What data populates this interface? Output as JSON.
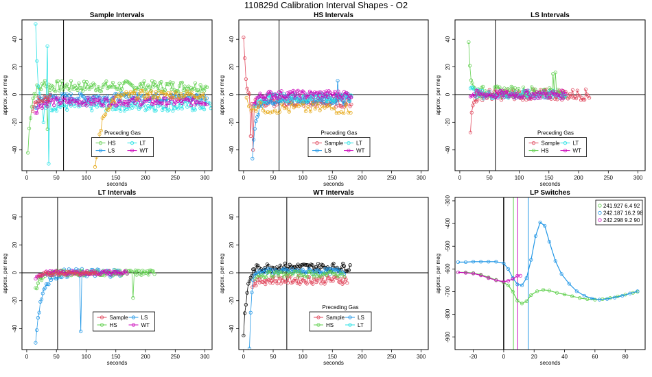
{
  "figure_title": "110829d   Calibration Interval Shapes - O2",
  "colors": {
    "Sample": "#E0475C",
    "HS": "#61D04F",
    "LS": "#2297E6",
    "LT": "#28E2E5",
    "WT": "#CD0BBC",
    "Other": "#000000"
  },
  "chart_data": [
    {
      "type": "scatter",
      "id": "p1",
      "title": "Sample Intervals",
      "xlabel": "seconds",
      "ylabel": "approx. per meg",
      "xlim": [
        -8,
        312
      ],
      "ylim": [
        -55,
        54
      ],
      "xticks": [
        0,
        50,
        100,
        150,
        200,
        250,
        300
      ],
      "yticks": [
        -40,
        -20,
        0,
        20,
        40
      ],
      "hline": 0,
      "vline": 62,
      "legend": {
        "title": "Preceding Gas",
        "position": "center",
        "entries": [
          "HS",
          "LT",
          "LS",
          "WT"
        ],
        "keys": [
          "HS",
          "LT",
          "LS",
          "WT"
        ],
        "columns": 2
      },
      "series": [
        {
          "name": "HS",
          "key": "HS",
          "x0": 2,
          "x1": 305,
          "step": 2.2,
          "start": -42,
          "tau": 5,
          "level": 6,
          "noise": 4,
          "spike_x": [
            30,
            36
          ],
          "spike_y": [
            10,
            -25
          ]
        },
        {
          "name": "LT",
          "key": "LT",
          "x0": 15,
          "x1": 310,
          "step": 2.2,
          "start": 55,
          "tau": 3,
          "level": -8,
          "noise": 4,
          "spike_x": [
            28,
            35,
            38
          ],
          "spike_y": [
            -20,
            35,
            -50
          ]
        },
        {
          "name": "LS",
          "key": "LS",
          "x0": 15,
          "x1": 305,
          "step": 2.2,
          "start": -10,
          "tau": 6,
          "level": -2,
          "noise": 3,
          "spike_x": [],
          "spike_y": []
        },
        {
          "name": "WT",
          "key": "WT",
          "x0": 15,
          "x1": 305,
          "step": 2.2,
          "start": -12,
          "tau": 8,
          "level": -5,
          "noise": 3,
          "spike_x": [],
          "spike_y": []
        },
        {
          "name": "Sample",
          "key": "Sample",
          "x0": 10,
          "x1": 40,
          "step": 2,
          "start": -10,
          "tau": 5,
          "level": -2,
          "noise": 3,
          "spike_x": [],
          "spike_y": []
        },
        {
          "name": "Other",
          "key": "Other",
          "x0": 115,
          "x1": 300,
          "step": 2.5,
          "start": -55,
          "tau": 12,
          "level": 0,
          "noise": 3,
          "color": "#E6A817",
          "spike_x": [],
          "spike_y": []
        }
      ]
    },
    {
      "type": "scatter",
      "id": "p2",
      "title": "HS Intervals",
      "xlabel": "seconds",
      "ylabel": "approx. per meg",
      "xlim": [
        -8,
        312
      ],
      "ylim": [
        -55,
        54
      ],
      "xticks": [
        0,
        50,
        100,
        150,
        200,
        250,
        300
      ],
      "yticks": [
        -40,
        -20,
        0,
        20,
        40
      ],
      "hline": 0,
      "vline": 60,
      "legend": {
        "title": "Preceding Gas",
        "position": "center",
        "entries": [
          "Sample",
          "LT",
          "LS",
          "WT"
        ],
        "keys": [
          "Sample",
          "LT",
          "LS",
          "WT"
        ],
        "columns": 2
      },
      "series": [
        {
          "name": "Sample",
          "key": "Sample",
          "x0": 0,
          "x1": 182,
          "step": 2,
          "start": 43,
          "tau": 4,
          "level": -6,
          "noise": 3,
          "spike_x": [
            12,
            16
          ],
          "spike_y": [
            -30,
            -40
          ]
        },
        {
          "name": "LS",
          "key": "LS",
          "x0": 15,
          "x1": 182,
          "step": 2,
          "start": -45,
          "tau": 6,
          "level": -4,
          "noise": 3,
          "spike_x": [
            160
          ],
          "spike_y": [
            10
          ]
        },
        {
          "name": "LT",
          "key": "LT",
          "x0": 18,
          "x1": 182,
          "step": 2,
          "start": -8,
          "tau": 8,
          "level": -2,
          "noise": 3,
          "spike_x": [],
          "spike_y": []
        },
        {
          "name": "WT",
          "key": "WT",
          "x0": 18,
          "x1": 182,
          "step": 2,
          "start": -5,
          "tau": 8,
          "level": 0,
          "noise": 3,
          "spike_x": [],
          "spike_y": []
        },
        {
          "name": "Other",
          "key": "Other",
          "x0": 5,
          "x1": 182,
          "step": 4,
          "start": -5,
          "tau": 10,
          "level": -10,
          "noise": 4,
          "color": "#E6A817",
          "spike_x": [],
          "spike_y": []
        }
      ]
    },
    {
      "type": "scatter",
      "id": "p3",
      "title": "LS Intervals",
      "xlabel": "seconds",
      "ylabel": "approx. per meg",
      "xlim": [
        -8,
        312
      ],
      "ylim": [
        -55,
        54
      ],
      "xticks": [
        0,
        50,
        100,
        150,
        200,
        250,
        300
      ],
      "yticks": [
        -40,
        -20,
        0,
        20,
        40
      ],
      "hline": 0,
      "vline": 60,
      "legend": {
        "title": "Preceding Gas",
        "position": "center",
        "entries": [
          "Sample",
          "LT",
          "HS",
          "WT"
        ],
        "keys": [
          "Sample",
          "LT",
          "HS",
          "WT"
        ],
        "columns": 2
      },
      "series": [
        {
          "name": "Sample",
          "key": "Sample",
          "x0": 18,
          "x1": 218,
          "step": 2,
          "start": -25,
          "tau": 4,
          "level": 0,
          "noise": 4,
          "spike_x": [],
          "spike_y": []
        },
        {
          "name": "HS",
          "key": "HS",
          "x0": 15,
          "x1": 178,
          "step": 2,
          "start": 40,
          "tau": 3,
          "level": 2,
          "noise": 4,
          "spike_x": [
            158,
            162
          ],
          "spike_y": [
            15,
            16
          ]
        },
        {
          "name": "LT",
          "key": "LT",
          "x0": 18,
          "x1": 178,
          "step": 2,
          "start": 5,
          "tau": 6,
          "level": 0,
          "noise": 3,
          "spike_x": [],
          "spike_y": []
        },
        {
          "name": "WT",
          "key": "WT",
          "x0": 18,
          "x1": 178,
          "step": 2,
          "start": 0,
          "tau": 6,
          "level": 0,
          "noise": 3,
          "spike_x": [],
          "spike_y": []
        }
      ]
    },
    {
      "type": "scatter",
      "id": "p4",
      "title": "LT Intervals",
      "xlabel": "seconds",
      "ylabel": "approx. per meg",
      "xlim": [
        -8,
        312
      ],
      "ylim": [
        -55,
        54
      ],
      "xticks": [
        0,
        50,
        100,
        150,
        200,
        250,
        300
      ],
      "yticks": [
        -40,
        -20,
        0,
        20,
        40
      ],
      "hline": 0,
      "vline": 52,
      "legend": {
        "title": "",
        "position": "bottom-center",
        "entries": [
          "Sample",
          "LS",
          "HS",
          "WT"
        ],
        "keys": [
          "Sample",
          "LS",
          "HS",
          "WT"
        ],
        "columns": 2
      },
      "series": [
        {
          "name": "LS",
          "key": "LS",
          "x0": 15,
          "x1": 160,
          "step": 2,
          "start": -48,
          "tau": 10,
          "level": 0,
          "noise": 3,
          "spike_x": [
            92
          ],
          "spike_y": [
            -42
          ]
        },
        {
          "name": "HS",
          "key": "HS",
          "x0": 15,
          "x1": 215,
          "step": 2,
          "start": -12,
          "tau": 8,
          "level": 0,
          "noise": 2,
          "spike_x": [
            180
          ],
          "spike_y": [
            -18
          ]
        },
        {
          "name": "WT",
          "key": "WT",
          "x0": 15,
          "x1": 170,
          "step": 2,
          "start": -3,
          "tau": 8,
          "level": 0,
          "noise": 1.5,
          "spike_x": [],
          "spike_y": []
        },
        {
          "name": "Sample",
          "key": "Sample",
          "x0": 20,
          "x1": 120,
          "step": 3,
          "start": -4,
          "tau": 8,
          "level": 0,
          "noise": 1.5,
          "spike_x": [],
          "spike_y": []
        }
      ]
    },
    {
      "type": "scatter",
      "id": "p5",
      "title": "WT Intervals",
      "xlabel": "seconds",
      "ylabel": "approx. per meg",
      "xlim": [
        -8,
        312
      ],
      "ylim": [
        -55,
        54
      ],
      "xticks": [
        0,
        50,
        100,
        150,
        200,
        250,
        300
      ],
      "yticks": [
        -40,
        -20,
        0,
        20,
        40
      ],
      "hline": 0,
      "vline": 73,
      "legend": {
        "title": "Preceding Gas",
        "position": "bottom-center",
        "entries": [
          "Sample",
          "LS",
          "HS",
          "LT"
        ],
        "keys": [
          "Sample",
          "LS",
          "HS",
          "LT"
        ],
        "columns": 2
      },
      "series": [
        {
          "name": "Other",
          "key": "Other",
          "x0": 0,
          "x1": 180,
          "step": 2,
          "start": -46,
          "tau": 6,
          "level": 4,
          "noise": 3,
          "spike_x": [],
          "spike_y": []
        },
        {
          "name": "Sample",
          "key": "Sample",
          "x0": 15,
          "x1": 175,
          "step": 2,
          "start": -8,
          "tau": 8,
          "level": -5,
          "noise": 3,
          "spike_x": [],
          "spike_y": []
        },
        {
          "name": "LS",
          "key": "LS",
          "x0": 10,
          "x1": 170,
          "step": 2,
          "start": -55,
          "tau": 3,
          "level": 1,
          "noise": 2,
          "spike_x": [],
          "spike_y": []
        },
        {
          "name": "HS",
          "key": "HS",
          "x0": 20,
          "x1": 170,
          "step": 3,
          "start": -3,
          "tau": 8,
          "level": -1,
          "noise": 2,
          "spike_x": [],
          "spike_y": []
        }
      ]
    },
    {
      "type": "line",
      "id": "p6",
      "title": "LP Switches",
      "xlabel": "seconds",
      "ylabel": "approx. per meg",
      "xlim": [
        -32,
        93
      ],
      "ylim": [
        -955,
        -285
      ],
      "xticks": [
        -20,
        0,
        20,
        40,
        60,
        80
      ],
      "yticks": [
        -300,
        -400,
        -500,
        -600,
        -700,
        -800,
        -900
      ],
      "vlines": [
        {
          "x": 0,
          "color": "#000000",
          "width": 1.5
        },
        {
          "x": 6.4,
          "color": "#61D04F",
          "width": 1
        },
        {
          "x": 9.2,
          "color": "#CD0BBC",
          "width": 1
        },
        {
          "x": 16.2,
          "color": "#2297E6",
          "width": 1
        }
      ],
      "legend": {
        "title": "",
        "position": "top-right",
        "entries": [
          "241.927 6.4 92",
          "242.187 16.2 98",
          "242.298 9.2 90"
        ],
        "keys": [
          "HS",
          "LS",
          "WT"
        ],
        "columns": 1
      },
      "series": [
        {
          "name": "241.927 6.4 92",
          "key": "HS",
          "points": [
            [
              -30,
              -615
            ],
            [
              -25,
              -615
            ],
            [
              -20,
              -618
            ],
            [
              -15,
              -625
            ],
            [
              -10,
              -637
            ],
            [
              -5,
              -648
            ],
            [
              0,
              -660
            ],
            [
              3,
              -672
            ],
            [
              6,
              -700
            ],
            [
              9,
              -740
            ],
            [
              12,
              -752
            ],
            [
              15,
              -742
            ],
            [
              18,
              -715
            ],
            [
              22,
              -698
            ],
            [
              26,
              -692
            ],
            [
              30,
              -695
            ],
            [
              35,
              -705
            ],
            [
              40,
              -712
            ],
            [
              45,
              -720
            ],
            [
              50,
              -728
            ],
            [
              55,
              -733
            ],
            [
              60,
              -735
            ],
            [
              65,
              -733
            ],
            [
              70,
              -728
            ],
            [
              75,
              -721
            ],
            [
              80,
              -713
            ],
            [
              85,
              -705
            ],
            [
              88,
              -700
            ]
          ]
        },
        {
          "name": "242.187 16.2 98",
          "key": "LS",
          "points": [
            [
              -30,
              -570
            ],
            [
              -25,
              -570
            ],
            [
              -20,
              -568
            ],
            [
              -15,
              -568
            ],
            [
              -10,
              -568
            ],
            [
              -5,
              -568
            ],
            [
              0,
              -575
            ],
            [
              3,
              -600
            ],
            [
              6,
              -640
            ],
            [
              9,
              -668
            ],
            [
              12,
              -672
            ],
            [
              15,
              -640
            ],
            [
              18,
              -560
            ],
            [
              21,
              -455
            ],
            [
              24,
              -395
            ],
            [
              27,
              -410
            ],
            [
              30,
              -480
            ],
            [
              34,
              -565
            ],
            [
              38,
              -622
            ],
            [
              43,
              -665
            ],
            [
              48,
              -698
            ],
            [
              53,
              -718
            ],
            [
              58,
              -730
            ],
            [
              63,
              -735
            ],
            [
              68,
              -732
            ],
            [
              73,
              -726
            ],
            [
              78,
              -718
            ],
            [
              83,
              -708
            ],
            [
              88,
              -698
            ]
          ]
        },
        {
          "name": "242.298 9.2 90",
          "key": "WT",
          "points": [
            [
              -30,
              -615
            ],
            [
              -25,
              -617
            ],
            [
              -20,
              -620
            ],
            [
              -15,
              -628
            ],
            [
              -10,
              -640
            ],
            [
              -5,
              -650
            ],
            [
              0,
              -656
            ],
            [
              3,
              -652
            ],
            [
              6,
              -644
            ],
            [
              9,
              -630
            ],
            [
              11,
              -630
            ]
          ]
        }
      ]
    }
  ]
}
